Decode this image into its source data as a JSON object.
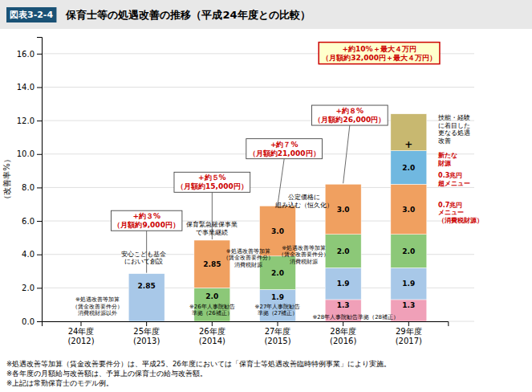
{
  "chart_data": {
    "type": "bar",
    "stacked": true,
    "figure_label": "図表3-2-4",
    "title": "保育士等の処遇改善の推移（平成24年度との比較）",
    "ylabel": "（改善率%）",
    "categories": [
      "24年度\n(2012)",
      "25年度\n(2013)",
      "26年度\n(2014)",
      "27年度\n(2015)",
      "28年度\n(2016)",
      "29年度\n(2017)"
    ],
    "series": [
      {
        "values": [
          null,
          2.85,
          2.0,
          1.9,
          1.3,
          1.3
        ],
        "value_labels": [
          null,
          "2.85",
          "2.0",
          "1.9",
          "1.3",
          "1.3"
        ],
        "colors": [
          null,
          "#a8c8e8",
          "#8cc878",
          "#a8c8e8",
          "#f0a0b8",
          "#f0a0b8"
        ],
        "data_labels": true
      },
      {
        "values": [
          null,
          null,
          2.85,
          2.0,
          1.9,
          1.9
        ],
        "value_labels": [
          null,
          null,
          "2.85",
          "2.0",
          "1.9",
          "1.9"
        ],
        "colors": [
          null,
          null,
          "#f0a060",
          "#8cc878",
          "#a8c8e8",
          "#a8c8e8"
        ],
        "data_labels": true
      },
      {
        "values": [
          null,
          null,
          null,
          3.0,
          2.0,
          2.0
        ],
        "value_labels": [
          null,
          null,
          null,
          "3.0",
          "2.0",
          "2.0"
        ],
        "colors": [
          null,
          null,
          null,
          "#f0a060",
          "#8cc878",
          "#8cc878"
        ],
        "data_labels": true
      },
      {
        "values": [
          null,
          null,
          null,
          null,
          3.0,
          3.0
        ],
        "value_labels": [
          null,
          null,
          null,
          null,
          "3.0",
          "3.0"
        ],
        "colors": [
          null,
          null,
          null,
          null,
          "#f0a060",
          "#f0a060"
        ],
        "data_labels": true
      },
      {
        "values": [
          null,
          null,
          null,
          null,
          null,
          2.0
        ],
        "value_labels": [
          null,
          null,
          null,
          null,
          null,
          "2.0"
        ],
        "colors": [
          null,
          null,
          null,
          null,
          null,
          "#70b8e0"
        ],
        "data_labels": true
      },
      {
        "values": [
          null,
          null,
          null,
          null,
          null,
          2.2
        ],
        "colors": [
          null,
          null,
          null,
          null,
          null,
          "#c8b870"
        ],
        "data_labels": false
      }
    ],
    "ylim": [
      0,
      17
    ],
    "yticks": [
      {
        "value": 0,
        "label": "0.0"
      },
      {
        "value": 2,
        "label": "2.0"
      },
      {
        "value": 4,
        "label": "4.0"
      },
      {
        "value": 6,
        "label": "6.0"
      },
      {
        "value": 8,
        "label": "8.0"
      },
      {
        "value": 10,
        "label": "10.0"
      },
      {
        "value": 12,
        "label": "12.0"
      },
      {
        "value": 14,
        "label": "14.0"
      },
      {
        "value": 16,
        "label": "16.0"
      }
    ],
    "grid": true,
    "annotations": [
      {
        "text": "+約３%\n（月額約9,000円）",
        "color": "#cc0000"
      },
      {
        "text": "+約５%\n（月額約15,000円）",
        "color": "#cc0000"
      },
      {
        "text": "+約７%\n（月額約21,000円）",
        "color": "#cc0000"
      },
      {
        "text": "+約８%\n（月額約26,000円）",
        "color": "#cc0000"
      },
      {
        "text": "+約10%＋最大４万円\n（月額約32,000円＋最大４万円）",
        "color": "#cc0000"
      },
      {
        "text": "安心こども基金\nにおいて創設",
        "color": "black"
      },
      {
        "text": "※処遇改善等加算\n（賃金改善要件分）\n消費税財源以外",
        "color": "black"
      },
      {
        "text": "保育緊急確保事業\nで事業継続",
        "color": "black"
      },
      {
        "text": "※処遇改善等加算\n（賃金改善要件分）\n消費税財源",
        "color": "black"
      },
      {
        "text": "※26年人事院勧告\n準拠（26補正）",
        "color": "black"
      },
      {
        "text": "公定価格に\n組み込む（恒久化）",
        "color": "black"
      },
      {
        "text": "※処遇改善等加算\n（賃金改善要件分）\n消費税財源",
        "color": "black"
      },
      {
        "text": "※27年人事院勧告\n準拠（27補正）",
        "color": "black"
      },
      {
        "text": "※28年人事院勧告準拠（28補正）",
        "color": "black"
      },
      {
        "text": "技能・経験\nに着目した\n更なる処遇\n改善",
        "color": "black"
      },
      {
        "text": "新たな\n財源",
        "color": "#cc0000"
      },
      {
        "text": "0.3兆円\n超メニュー",
        "color": "#cc0000"
      },
      {
        "text": "0.7兆円\nメニュー\n（消費税財源）",
        "color": "#cc0000"
      },
      {
        "text": "+",
        "color": "black"
      }
    ],
    "footnotes": [
      "※処遇改善等加算（賃金改善要件分）は、平成25、26年度においては「保育士等処遇改善臨時特例事業」により実施。",
      "※各年度の月額給与改善額は、予算上の保育士の給与改善額。",
      "※上記は常勤保育士のモデル例。"
    ]
  }
}
